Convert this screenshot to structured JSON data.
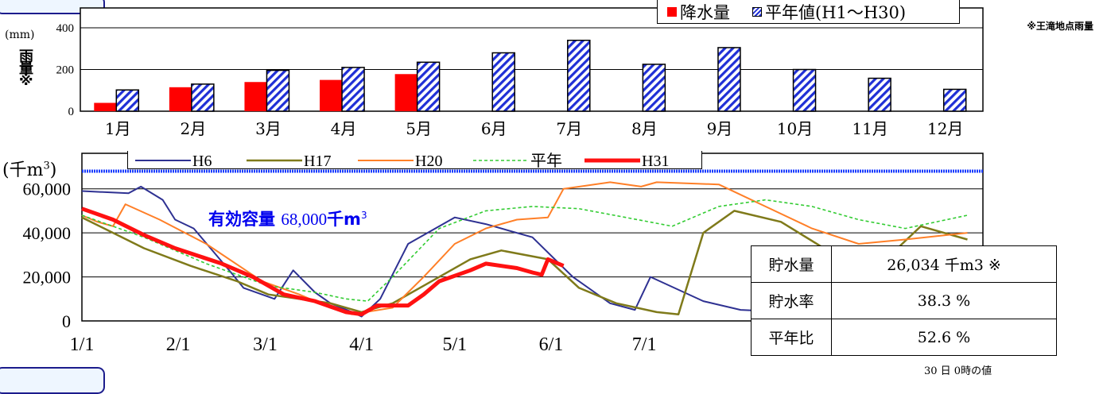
{
  "rain_legend": {
    "precip": "降水量",
    "normal": "平年値(H1～H30)"
  },
  "rain_note": "※王滝地点雨量",
  "rain_unit": "(mm)",
  "rain_axis_label": "雨量※",
  "storage_unit": "(千m",
  "storage_unit_sup": "3",
  "storage_unit_close": ")",
  "capacity": {
    "label": "有効容量",
    "value": "68,000",
    "unit": "千m",
    "unit_sup": "3"
  },
  "stats": [
    {
      "label": "貯水量",
      "value": "26,034  千m3 ※"
    },
    {
      "label": "貯水率",
      "value": "38.3  %"
    },
    {
      "label": "平年比",
      "value": "52.6  %"
    }
  ],
  "footnote": "30 日 0時の値",
  "colors": {
    "precip": "#ff0000",
    "normal_bar": "#1f2fd6",
    "capacity_line": "#1a3cff",
    "H6": "#2e3192",
    "H17": "#7f7a1a",
    "H20": "#ff7f27",
    "avg": "#33cc33",
    "H31": "#ff1111"
  },
  "chart_data": [
    {
      "type": "bar",
      "categories": [
        "1月",
        "2月",
        "3月",
        "4月",
        "5月",
        "6月",
        "7月",
        "8月",
        "9月",
        "10月",
        "11月",
        "12月"
      ],
      "ylim": [
        0,
        400
      ],
      "yticks": [
        "0",
        "200",
        "400"
      ],
      "series": [
        {
          "name": "降水量",
          "values": [
            40,
            115,
            140,
            150,
            178,
            null,
            null,
            null,
            null,
            null,
            null,
            null
          ]
        },
        {
          "name": "平年値(H1～H30)",
          "values": [
            102,
            130,
            196,
            210,
            235,
            280,
            340,
            225,
            305,
            200,
            158,
            105
          ]
        }
      ]
    },
    {
      "type": "line",
      "xticks": [
        "1/1",
        "2/1",
        "3/1",
        "4/1",
        "5/1",
        "6/1",
        "7/1"
      ],
      "yticks": [
        "0",
        "20,000",
        "40,000",
        "60,000"
      ],
      "ylim": [
        0,
        68000
      ],
      "capacity": 68000,
      "series": [
        {
          "name": "H6",
          "points": [
            [
              0,
              59000
            ],
            [
              15,
              58000
            ],
            [
              19,
              61000
            ],
            [
              26,
              55000
            ],
            [
              30,
              46000
            ],
            [
              36,
              42000
            ],
            [
              48,
              22000
            ],
            [
              52,
              15000
            ],
            [
              62,
              10000
            ],
            [
              68,
              23000
            ],
            [
              75,
              13000
            ],
            [
              80,
              8000
            ],
            [
              87,
              4000
            ],
            [
              90,
              2000
            ],
            [
              96,
              10000
            ],
            [
              105,
              35000
            ],
            [
              120,
              47000
            ],
            [
              130,
              44000
            ],
            [
              145,
              38000
            ],
            [
              158,
              20000
            ],
            [
              170,
              8000
            ],
            [
              178,
              5000
            ],
            [
              183,
              20000
            ],
            [
              200,
              9000
            ],
            [
              212,
              5000
            ],
            [
              220,
              4500
            ]
          ]
        },
        {
          "name": "H17",
          "points": [
            [
              0,
              47000
            ],
            [
              10,
              40000
            ],
            [
              20,
              33000
            ],
            [
              35,
              25000
            ],
            [
              50,
              18000
            ],
            [
              60,
              12000
            ],
            [
              70,
              10000
            ],
            [
              80,
              8000
            ],
            [
              90,
              4000
            ],
            [
              100,
              8000
            ],
            [
              110,
              16000
            ],
            [
              125,
              28000
            ],
            [
              135,
              32000
            ],
            [
              150,
              28000
            ],
            [
              160,
              15000
            ],
            [
              172,
              8000
            ],
            [
              185,
              4000
            ],
            [
              192,
              3000
            ],
            [
              200,
              40000
            ],
            [
              210,
              50000
            ],
            [
              225,
              45000
            ],
            [
              240,
              32000
            ],
            [
              255,
              23000
            ],
            [
              270,
              43000
            ],
            [
              285,
              37000
            ]
          ]
        },
        {
          "name": "H20",
          "points": [
            [
              0,
              48000
            ],
            [
              5,
              45000
            ],
            [
              10,
              43000
            ],
            [
              14,
              53000
            ],
            [
              25,
              46000
            ],
            [
              40,
              35000
            ],
            [
              58,
              18000
            ],
            [
              70,
              12000
            ],
            [
              80,
              6000
            ],
            [
              87,
              3000
            ],
            [
              100,
              6000
            ],
            [
              110,
              20000
            ],
            [
              120,
              35000
            ],
            [
              130,
              42000
            ],
            [
              140,
              46000
            ],
            [
              150,
              47000
            ],
            [
              155,
              60000
            ],
            [
              170,
              63000
            ],
            [
              180,
              61000
            ],
            [
              185,
              63000
            ],
            [
              205,
              62000
            ],
            [
              220,
              52000
            ],
            [
              235,
              42000
            ],
            [
              250,
              35000
            ],
            [
              265,
              37000
            ],
            [
              285,
              40000
            ]
          ]
        },
        {
          "name": "平年",
          "points": [
            [
              0,
              48000
            ],
            [
              20,
              38000
            ],
            [
              40,
              26000
            ],
            [
              50,
              21000
            ],
            [
              60,
              16000
            ],
            [
              75,
              13000
            ],
            [
              85,
              10000
            ],
            [
              92,
              9000
            ],
            [
              100,
              20000
            ],
            [
              115,
              42000
            ],
            [
              130,
              50000
            ],
            [
              145,
              52000
            ],
            [
              160,
              51000
            ],
            [
              175,
              47000
            ],
            [
              190,
              43000
            ],
            [
              205,
              52000
            ],
            [
              220,
              55000
            ],
            [
              235,
              52000
            ],
            [
              250,
              46000
            ],
            [
              265,
              42000
            ],
            [
              285,
              48000
            ]
          ]
        },
        {
          "name": "H31",
          "points": [
            [
              0,
              51000
            ],
            [
              10,
              46000
            ],
            [
              20,
              39000
            ],
            [
              30,
              33000
            ],
            [
              45,
              26000
            ],
            [
              55,
              20000
            ],
            [
              65,
              12000
            ],
            [
              75,
              9000
            ],
            [
              85,
              4000
            ],
            [
              90,
              3000
            ],
            [
              95,
              7000
            ],
            [
              105,
              7000
            ],
            [
              110,
              12000
            ],
            [
              115,
              18000
            ],
            [
              125,
              23000
            ],
            [
              130,
              26000
            ],
            [
              140,
              24000
            ],
            [
              145,
              22000
            ],
            [
              148,
              21000
            ],
            [
              150,
              28000
            ],
            [
              155,
              25000
            ]
          ]
        }
      ]
    }
  ]
}
